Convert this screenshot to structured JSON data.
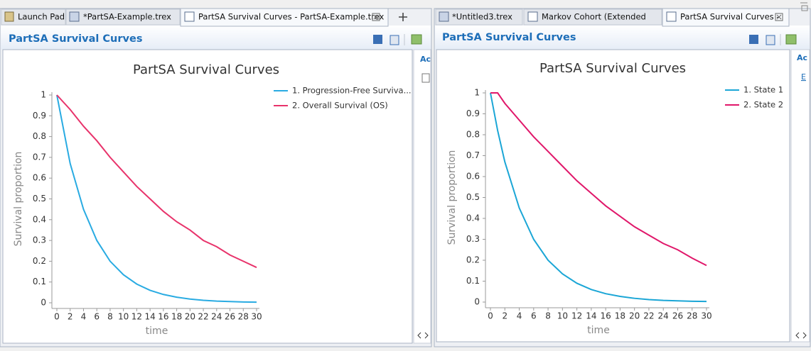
{
  "left_pane": {
    "tabs": [
      "Launch Pad",
      "*PartSA-Example.trex",
      "PartSA Survival Curves - PartSA-Example.trex"
    ],
    "header": "PartSA Survival Curves",
    "side_labels": [
      "Ac"
    ]
  },
  "right_pane": {
    "tabs": [
      "*Untitled3.trex",
      "Markov Cohort (Extended",
      "PartSA Survival Curves -"
    ],
    "header": "PartSA Survival Curves",
    "side_labels": [
      "Ac",
      "E"
    ]
  },
  "chart_data": [
    {
      "type": "line",
      "title": "PartSA Survival Curves",
      "x_label": "time",
      "y_label": "Survival proportion",
      "x": [
        0,
        2,
        4,
        6,
        8,
        10,
        12,
        14,
        16,
        18,
        20,
        22,
        24,
        26,
        28,
        30
      ],
      "series": [
        {
          "name": "1. Progression-Free Surviva...",
          "color": "#29abe2",
          "values": [
            1,
            0.67,
            0.45,
            0.3,
            0.2,
            0.135,
            0.09,
            0.06,
            0.04,
            0.027,
            0.018,
            0.012,
            0.008,
            0.006,
            0.004,
            0.003
          ]
        },
        {
          "name": "2. Overall Survival (OS)",
          "color": "#e8336b",
          "values": [
            1,
            0.93,
            0.85,
            0.78,
            0.7,
            0.63,
            0.56,
            0.5,
            0.44,
            0.39,
            0.35,
            0.3,
            0.27,
            0.23,
            0.2,
            0.17
          ]
        }
      ],
      "xlim": [
        0,
        30
      ],
      "xticks": [
        0,
        2,
        4,
        6,
        8,
        10,
        12,
        14,
        16,
        18,
        20,
        22,
        24,
        26,
        28,
        30
      ],
      "ylim": [
        0,
        1
      ],
      "yticks": [
        0,
        0.1,
        0.2,
        0.3,
        0.4,
        0.5,
        0.6,
        0.7,
        0.8,
        0.9,
        1
      ],
      "grid": false,
      "legend": "upper right"
    },
    {
      "type": "line",
      "title": "PartSA Survival Curves",
      "x_label": "time",
      "y_label": "Survival proportion",
      "x": [
        0,
        1,
        2,
        4,
        6,
        8,
        10,
        12,
        14,
        16,
        18,
        20,
        22,
        24,
        26,
        28,
        30
      ],
      "series": [
        {
          "name": "1. State 1",
          "color": "#1ba6d6",
          "values": [
            1,
            0.82,
            0.67,
            0.45,
            0.3,
            0.2,
            0.135,
            0.09,
            0.06,
            0.04,
            0.027,
            0.018,
            0.012,
            0.008,
            0.006,
            0.004,
            0.003
          ]
        },
        {
          "name": "2. State 2",
          "color": "#e0176a",
          "values": [
            1,
            1,
            0.95,
            0.87,
            0.79,
            0.72,
            0.65,
            0.58,
            0.52,
            0.46,
            0.41,
            0.36,
            0.32,
            0.28,
            0.25,
            0.21,
            0.175
          ]
        }
      ],
      "xlim": [
        0,
        30
      ],
      "xticks": [
        0,
        2,
        4,
        6,
        8,
        10,
        12,
        14,
        16,
        18,
        20,
        22,
        24,
        26,
        28,
        30
      ],
      "ylim": [
        0,
        1
      ],
      "yticks": [
        0,
        0.1,
        0.2,
        0.3,
        0.4,
        0.5,
        0.6,
        0.7,
        0.8,
        0.9,
        1
      ],
      "grid": false,
      "legend": "upper right"
    }
  ]
}
